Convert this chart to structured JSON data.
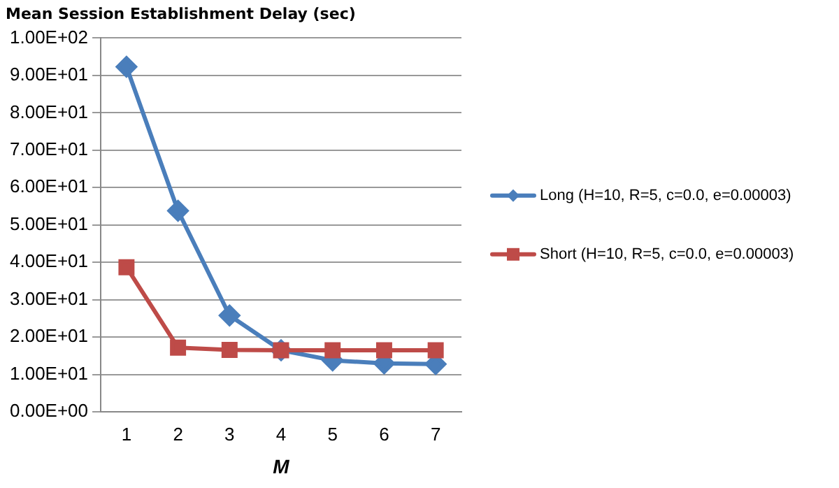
{
  "chart_data": {
    "type": "line",
    "title": "Mean Session Establishment Delay (sec)",
    "xlabel": "M",
    "categories": [
      "1",
      "2",
      "3",
      "4",
      "5",
      "6",
      "7"
    ],
    "series": [
      {
        "name": "Long (H=10, R=5, c=0.0, e=0.00003)",
        "color": "#4a7ebb",
        "marker": "diamond",
        "values": [
          92.3,
          53.8,
          25.8,
          16.5,
          13.8,
          13.0,
          12.8
        ]
      },
      {
        "name": "Short (H=10, R=5, c=0.0, e=0.00003)",
        "color": "#be4b48",
        "marker": "square",
        "values": [
          38.7,
          17.2,
          16.6,
          16.5,
          16.5,
          16.5,
          16.5
        ]
      }
    ],
    "ylim": [
      0,
      100
    ],
    "yticks": [
      {
        "value": 0,
        "label": "0.00E+00"
      },
      {
        "value": 10,
        "label": "1.00E+01"
      },
      {
        "value": 20,
        "label": "2.00E+01"
      },
      {
        "value": 30,
        "label": "3.00E+01"
      },
      {
        "value": 40,
        "label": "4.00E+01"
      },
      {
        "value": 50,
        "label": "5.00E+01"
      },
      {
        "value": 60,
        "label": "6.00E+01"
      },
      {
        "value": 70,
        "label": "7.00E+01"
      },
      {
        "value": 80,
        "label": "8.00E+01"
      },
      {
        "value": 90,
        "label": "9.00E+01"
      },
      {
        "value": 100,
        "label": "1.00E+02"
      }
    ],
    "grid": "y",
    "legend": "right",
    "line_style": "solid"
  }
}
